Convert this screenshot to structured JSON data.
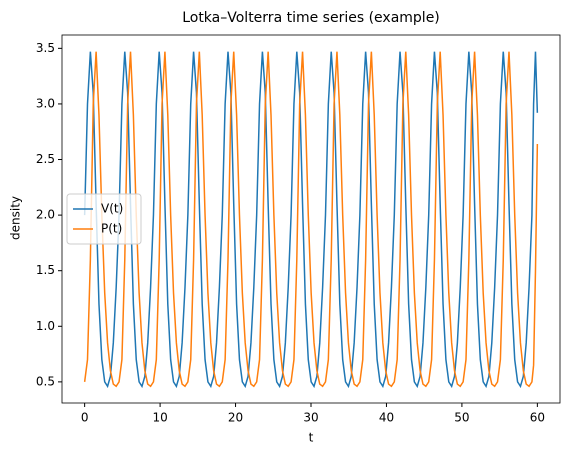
{
  "chart_data": {
    "type": "line",
    "title": "Lotka–Volterra time series (example)",
    "x_label": "t",
    "y_label": "density",
    "x": [
      0,
      0.38,
      0.76,
      1.14,
      1.52,
      1.9,
      2.28,
      2.66,
      3.04,
      3.42,
      3.8,
      4.18,
      4.56,
      4.94,
      5.32,
      5.7,
      6.08,
      6.46,
      6.84,
      7.22,
      7.6,
      7.98,
      8.36,
      8.74,
      9.12,
      9.5,
      9.88,
      10.26,
      10.64,
      11.02,
      11.4,
      11.78,
      12.16,
      12.54,
      12.92,
      13.3,
      13.68,
      14.06,
      14.44,
      14.82,
      15.2,
      15.58,
      15.96,
      16.34,
      16.72,
      17.1,
      17.48,
      17.86,
      18.24,
      18.62,
      19,
      19.38,
      19.76,
      20.14,
      20.52,
      20.9,
      21.28,
      21.66,
      22.04,
      22.42,
      22.8,
      23.18,
      23.56,
      23.94,
      24.32,
      24.7,
      25.08,
      25.46,
      25.84,
      26.22,
      26.6,
      26.98,
      27.36,
      27.74,
      28.12,
      28.5,
      28.88,
      29.26,
      29.64,
      30.02,
      30.4,
      30.78,
      31.16,
      31.54,
      31.92,
      32.3,
      32.68,
      33.06,
      33.44,
      33.82,
      34.2,
      34.58,
      34.96,
      35.34,
      35.72,
      36.1,
      36.48,
      36.86,
      37.24,
      37.62,
      38,
      38.38,
      38.76,
      39.14,
      39.52,
      39.9,
      40.28,
      40.66,
      41.04,
      41.42,
      41.8,
      42.18,
      42.56,
      42.94,
      43.32,
      43.7,
      44.08,
      44.46,
      44.84,
      45.22,
      45.6,
      45.98,
      46.36,
      46.74,
      47.12,
      47.5,
      47.88,
      48.26,
      48.64,
      49.02,
      49.4,
      49.78,
      50.16,
      50.54,
      50.92,
      51.3,
      51.68,
      52.06,
      52.44,
      52.82,
      53.2,
      53.58,
      53.96,
      54.34,
      54.72,
      55.1,
      55.48,
      55.86,
      56.24,
      56.62,
      57,
      57.38,
      57.76,
      58.14,
      58.52,
      58.9,
      59.28,
      59.5,
      59.75,
      60
    ],
    "series": [
      {
        "name": "V(t)",
        "color": "#1f77b4",
        "values": [
          2,
          3,
          3.47,
          3.1,
          2.1,
          1.2,
          0.7,
          0.5,
          0.46,
          0.55,
          0.85,
          1.35,
          2,
          3,
          3.47,
          3.1,
          2.1,
          1.2,
          0.7,
          0.5,
          0.46,
          0.55,
          0.85,
          1.35,
          2,
          3,
          3.47,
          3.1,
          2.1,
          1.2,
          0.7,
          0.5,
          0.46,
          0.55,
          0.85,
          1.35,
          2,
          3,
          3.47,
          3.1,
          2.1,
          1.2,
          0.7,
          0.5,
          0.46,
          0.55,
          0.85,
          1.35,
          2,
          3,
          3.47,
          3.1,
          2.1,
          1.2,
          0.7,
          0.5,
          0.46,
          0.55,
          0.85,
          1.35,
          2,
          3,
          3.47,
          3.1,
          2.1,
          1.2,
          0.7,
          0.5,
          0.46,
          0.55,
          0.85,
          1.35,
          2,
          3,
          3.47,
          3.1,
          2.1,
          1.2,
          0.7,
          0.5,
          0.46,
          0.55,
          0.85,
          1.35,
          2,
          3,
          3.47,
          3.1,
          2.1,
          1.2,
          0.7,
          0.5,
          0.46,
          0.55,
          0.85,
          1.35,
          2,
          3,
          3.47,
          3.1,
          2.1,
          1.2,
          0.7,
          0.5,
          0.46,
          0.55,
          0.85,
          1.35,
          2,
          3,
          3.47,
          3.1,
          2.1,
          1.2,
          0.7,
          0.5,
          0.46,
          0.55,
          0.85,
          1.35,
          2,
          3,
          3.47,
          3.1,
          2.1,
          1.2,
          0.7,
          0.5,
          0.46,
          0.55,
          0.85,
          1.35,
          2,
          3,
          3.47,
          3.1,
          2.1,
          1.2,
          0.7,
          0.5,
          0.46,
          0.55,
          0.85,
          1.35,
          2,
          3,
          3.47,
          3.1,
          2.1,
          1.2,
          0.7,
          0.5,
          0.46,
          0.55,
          0.85,
          1.35,
          2,
          3,
          3.47,
          2.92
        ]
      },
      {
        "name": "P(t)",
        "color": "#ff7f0e",
        "values": [
          0.5,
          0.7,
          1.6,
          3,
          3.47,
          2.9,
          2,
          1.3,
          0.85,
          0.6,
          0.48,
          0.46,
          0.5,
          0.7,
          1.6,
          3,
          3.47,
          2.9,
          2,
          1.3,
          0.85,
          0.6,
          0.48,
          0.46,
          0.5,
          0.7,
          1.6,
          3,
          3.47,
          2.9,
          2,
          1.3,
          0.85,
          0.6,
          0.48,
          0.46,
          0.5,
          0.7,
          1.6,
          3,
          3.47,
          2.9,
          2,
          1.3,
          0.85,
          0.6,
          0.48,
          0.46,
          0.5,
          0.7,
          1.6,
          3,
          3.47,
          2.9,
          2,
          1.3,
          0.85,
          0.6,
          0.48,
          0.46,
          0.5,
          0.7,
          1.6,
          3,
          3.47,
          2.9,
          2,
          1.3,
          0.85,
          0.6,
          0.48,
          0.46,
          0.5,
          0.7,
          1.6,
          3,
          3.47,
          2.9,
          2,
          1.3,
          0.85,
          0.6,
          0.48,
          0.46,
          0.5,
          0.7,
          1.6,
          3,
          3.47,
          2.9,
          2,
          1.3,
          0.85,
          0.6,
          0.48,
          0.46,
          0.5,
          0.7,
          1.6,
          3,
          3.47,
          2.9,
          2,
          1.3,
          0.85,
          0.6,
          0.48,
          0.46,
          0.5,
          0.7,
          1.6,
          3,
          3.47,
          2.9,
          2,
          1.3,
          0.85,
          0.6,
          0.48,
          0.46,
          0.5,
          0.7,
          1.6,
          3,
          3.47,
          2.9,
          2,
          1.3,
          0.85,
          0.6,
          0.48,
          0.46,
          0.5,
          0.7,
          1.6,
          3,
          3.47,
          2.9,
          2,
          1.3,
          0.85,
          0.6,
          0.48,
          0.46,
          0.5,
          0.7,
          1.6,
          3,
          3.47,
          2.9,
          2,
          1.3,
          0.85,
          0.6,
          0.48,
          0.46,
          0.5,
          0.65,
          1.5,
          2.64
        ]
      }
    ],
    "xlim": [
      -3,
      63
    ],
    "xticks": [
      0,
      10,
      20,
      30,
      40,
      50,
      60
    ],
    "ylim": [
      0.31,
      3.62
    ],
    "yticks": [
      0.5,
      {
        "value": 1,
        "label": "1.0"
      },
      1.5,
      {
        "value": 2,
        "label": "2.0"
      },
      2.5,
      {
        "value": 3,
        "label": "3.0"
      },
      3.5
    ],
    "legend": "center left"
  }
}
